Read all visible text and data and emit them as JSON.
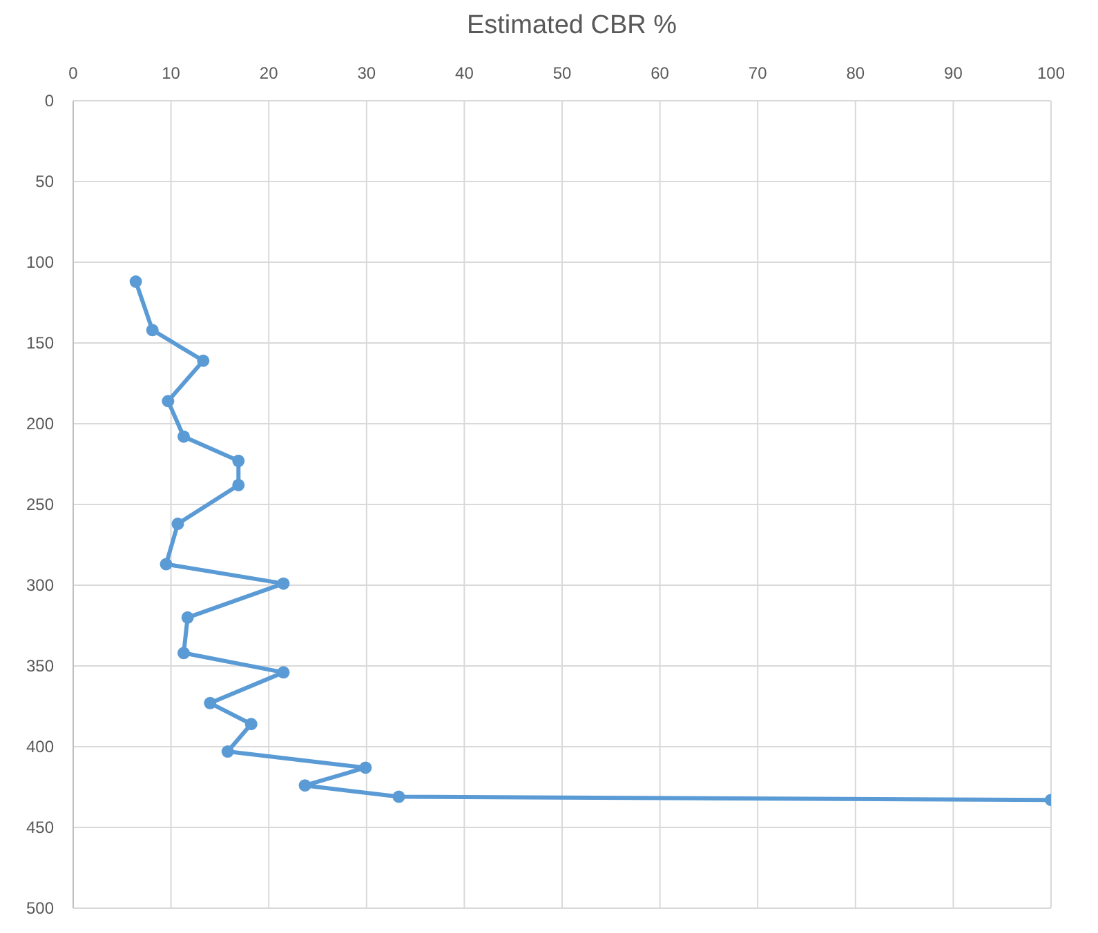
{
  "chart_data": {
    "type": "line",
    "title": "Estimated CBR %",
    "x": [
      6.4,
      8.1,
      13.3,
      9.7,
      11.3,
      16.9,
      16.9,
      10.7,
      9.5,
      21.5,
      11.7,
      11.3,
      21.5,
      14.0,
      18.2,
      15.8,
      29.9,
      23.7,
      33.3,
      100
    ],
    "series": [
      {
        "color": "#5b9bd5",
        "values": [
          112,
          142,
          161,
          186,
          208,
          223,
          238,
          262,
          287,
          299,
          320,
          342,
          354,
          373,
          386,
          403,
          413,
          424,
          431,
          433
        ]
      }
    ],
    "xlim": [
      0,
      100
    ],
    "xticks": [
      0,
      10,
      20,
      30,
      40,
      50,
      60,
      70,
      80,
      90,
      100
    ],
    "ylim": [
      500,
      0
    ],
    "yticks": [
      0,
      50,
      100,
      150,
      200,
      250,
      300,
      350,
      400,
      450,
      500
    ],
    "grid": true,
    "marker": "circle",
    "line_style": "solid"
  }
}
